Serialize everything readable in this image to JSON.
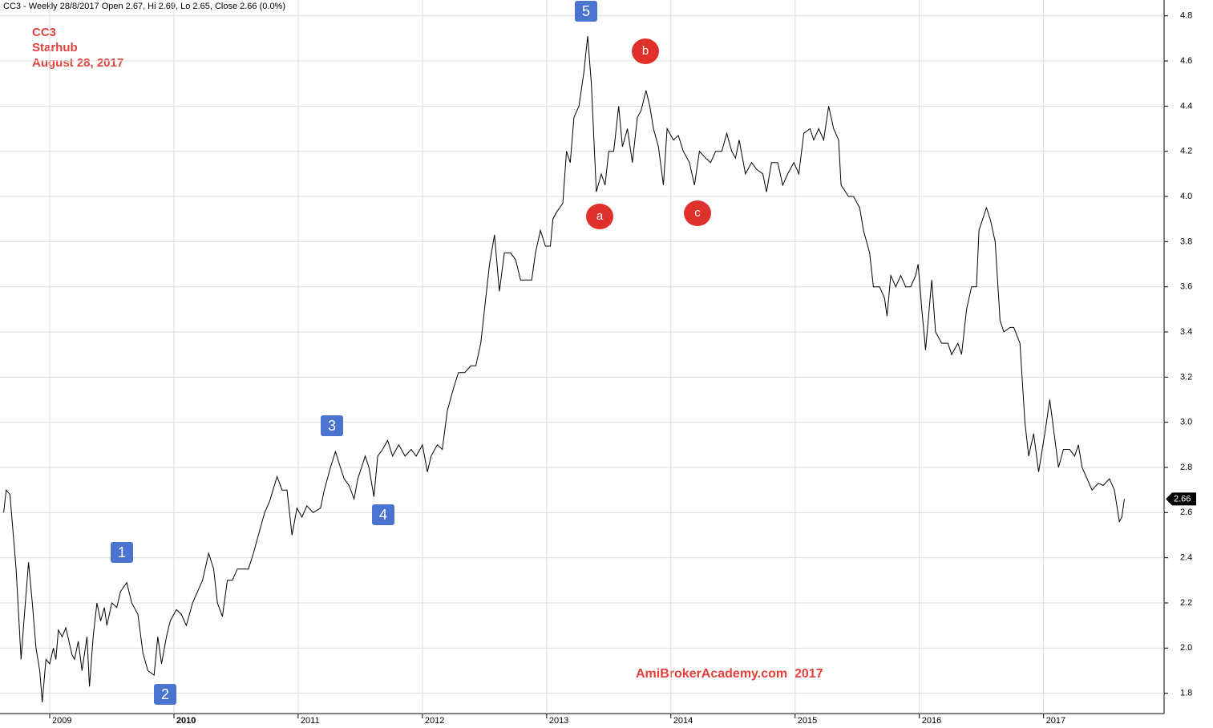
{
  "chart_data": {
    "type": "line",
    "title": "CC3 - Weekly 28/8/2017 Open 2.67, Hi 2.69, Lo 2.65, Close 2.66 (0.0%)",
    "annotations": [
      "CC3",
      "Starhub",
      "August 28, 2017"
    ],
    "watermark": "AmiBrokerAcademy.com  2017",
    "wave_labels": [
      "1",
      "2",
      "3",
      "4",
      "5"
    ],
    "correction_labels": [
      "a",
      "b",
      "c"
    ],
    "color": "#000000",
    "grid": true,
    "xlim": [
      2008.6,
      2017.97
    ],
    "ylim": [
      1.71,
      4.87
    ],
    "xticks": [
      2009,
      2010,
      2011,
      2012,
      2013,
      2014,
      2015,
      2016,
      2017
    ],
    "yticks": [
      4.8,
      4.6,
      4.4,
      4.2,
      {
        "value": 4,
        "label": "4.0"
      },
      3.8,
      3.6,
      3.4,
      3.2,
      {
        "value": 3,
        "label": "3.0"
      },
      2.8,
      2.6,
      2.4,
      2.2,
      {
        "value": 2,
        "label": "2.0"
      },
      1.8
    ],
    "x": [
      2008.63,
      2008.65,
      2008.68,
      2008.73,
      2008.77,
      2008.79,
      2008.83,
      2008.86,
      2008.89,
      2008.92,
      2008.94,
      2008.97,
      2009.0,
      2009.03,
      2009.05,
      2009.07,
      2009.1,
      2009.13,
      2009.18,
      2009.2,
      2009.23,
      2009.26,
      2009.3,
      2009.32,
      2009.35,
      2009.38,
      2009.41,
      2009.44,
      2009.46,
      2009.5,
      2009.54,
      2009.57,
      2009.62,
      2009.66,
      2009.71,
      2009.75,
      2009.79,
      2009.84,
      2009.87,
      2009.9,
      2009.94,
      2009.97,
      2010.02,
      2010.06,
      2010.1,
      2010.15,
      2010.19,
      2010.23,
      2010.28,
      2010.32,
      2010.35,
      2010.39,
      2010.43,
      2010.47,
      2010.51,
      2010.55,
      2010.6,
      2010.64,
      2010.68,
      2010.73,
      2010.77,
      2010.83,
      2010.87,
      2010.91,
      2010.95,
      2010.99,
      2011.03,
      2011.07,
      2011.12,
      2011.18,
      2011.21,
      2011.26,
      2011.3,
      2011.34,
      2011.37,
      2011.41,
      2011.45,
      2011.48,
      2011.54,
      2011.57,
      2011.61,
      2011.64,
      2011.68,
      2011.72,
      2011.76,
      2011.81,
      2011.86,
      2011.91,
      2011.95,
      2012.0,
      2012.04,
      2012.07,
      2012.12,
      2012.16,
      2012.2,
      2012.25,
      2012.29,
      2012.34,
      2012.39,
      2012.43,
      2012.47,
      2012.51,
      2012.54,
      2012.58,
      2012.62,
      2012.66,
      2012.71,
      2012.75,
      2012.79,
      2012.84,
      2012.88,
      2012.91,
      2012.95,
      2012.99,
      2013.03,
      2013.05,
      2013.08,
      2013.13,
      2013.16,
      2013.19,
      2013.22,
      2013.26,
      2013.3,
      2013.33,
      2013.36,
      2013.4,
      2013.44,
      2013.47,
      2013.5,
      2013.54,
      2013.58,
      2013.61,
      2013.65,
      2013.69,
      2013.73,
      2013.76,
      2013.8,
      2013.83,
      2013.86,
      2013.9,
      2013.94,
      2013.97,
      2014.02,
      2014.06,
      2014.1,
      2014.15,
      2014.19,
      2014.23,
      2014.28,
      2014.32,
      2014.36,
      2014.41,
      2014.45,
      2014.49,
      2014.52,
      2014.55,
      2014.6,
      2014.65,
      2014.69,
      2014.74,
      2014.77,
      2014.81,
      2014.86,
      2014.9,
      2014.94,
      2014.99,
      2015.03,
      2015.07,
      2015.12,
      2015.15,
      2015.19,
      2015.23,
      2015.27,
      2015.31,
      2015.35,
      2015.37,
      2015.43,
      2015.47,
      2015.52,
      2015.55,
      2015.6,
      2015.63,
      2015.68,
      2015.72,
      2015.74,
      2015.77,
      2015.81,
      2015.85,
      2015.89,
      2015.93,
      2015.97,
      2015.99,
      2016.02,
      2016.05,
      2016.1,
      2016.13,
      2016.18,
      2016.23,
      2016.26,
      2016.31,
      2016.34,
      2016.38,
      2016.42,
      2016.46,
      2016.48,
      2016.54,
      2016.57,
      2016.61,
      2016.65,
      2016.68,
      2016.73,
      2016.76,
      2016.81,
      2016.85,
      2016.88,
      2016.92,
      2016.96,
      2017.01,
      2017.05,
      2017.08,
      2017.12,
      2017.16,
      2017.21,
      2017.25,
      2017.28,
      2017.31,
      2017.35,
      2017.39,
      2017.44,
      2017.48,
      2017.53,
      2017.57,
      2017.61,
      2017.63,
      2017.65
    ],
    "values": [
      2.6,
      2.7,
      2.68,
      2.35,
      1.95,
      2.1,
      2.38,
      2.2,
      2.0,
      1.9,
      1.76,
      1.95,
      1.93,
      2.0,
      1.95,
      2.08,
      2.05,
      2.09,
      1.97,
      1.95,
      2.03,
      1.9,
      2.05,
      1.83,
      2.05,
      2.2,
      2.12,
      2.18,
      2.1,
      2.2,
      2.18,
      2.25,
      2.29,
      2.2,
      2.15,
      1.98,
      1.9,
      1.88,
      2.05,
      1.93,
      2.05,
      2.12,
      2.17,
      2.15,
      2.1,
      2.2,
      2.25,
      2.3,
      2.42,
      2.35,
      2.2,
      2.14,
      2.3,
      2.3,
      2.35,
      2.35,
      2.35,
      2.42,
      2.5,
      2.6,
      2.65,
      2.76,
      2.7,
      2.7,
      2.5,
      2.62,
      2.58,
      2.63,
      2.6,
      2.62,
      2.7,
      2.8,
      2.87,
      2.8,
      2.75,
      2.72,
      2.66,
      2.75,
      2.85,
      2.8,
      2.67,
      2.85,
      2.88,
      2.92,
      2.85,
      2.9,
      2.85,
      2.88,
      2.85,
      2.9,
      2.78,
      2.85,
      2.9,
      2.88,
      3.05,
      3.15,
      3.22,
      3.22,
      3.25,
      3.25,
      3.35,
      3.55,
      3.7,
      3.83,
      3.58,
      3.75,
      3.75,
      3.72,
      3.63,
      3.63,
      3.63,
      3.75,
      3.85,
      3.78,
      3.78,
      3.9,
      3.93,
      3.97,
      4.2,
      4.15,
      4.35,
      4.4,
      4.55,
      4.71,
      4.5,
      4.02,
      4.1,
      4.05,
      4.2,
      4.2,
      4.4,
      4.22,
      4.3,
      4.15,
      4.35,
      4.38,
      4.47,
      4.4,
      4.3,
      4.22,
      4.05,
      4.3,
      4.25,
      4.27,
      4.2,
      4.15,
      4.05,
      4.2,
      4.17,
      4.15,
      4.2,
      4.2,
      4.28,
      4.2,
      4.17,
      4.25,
      4.1,
      4.15,
      4.12,
      4.1,
      4.02,
      4.15,
      4.15,
      4.05,
      4.1,
      4.15,
      4.1,
      4.28,
      4.3,
      4.25,
      4.3,
      4.25,
      4.4,
      4.3,
      4.25,
      4.05,
      4.0,
      4.0,
      3.95,
      3.85,
      3.75,
      3.6,
      3.6,
      3.55,
      3.47,
      3.65,
      3.6,
      3.65,
      3.6,
      3.6,
      3.65,
      3.7,
      3.5,
      3.32,
      3.63,
      3.4,
      3.35,
      3.35,
      3.3,
      3.35,
      3.3,
      3.5,
      3.6,
      3.6,
      3.85,
      3.95,
      3.9,
      3.8,
      3.45,
      3.4,
      3.42,
      3.42,
      3.35,
      3.0,
      2.85,
      2.95,
      2.78,
      2.95,
      3.1,
      2.97,
      2.8,
      2.88,
      2.88,
      2.85,
      2.9,
      2.8,
      2.75,
      2.7,
      2.73,
      2.72,
      2.75,
      2.7,
      2.56,
      2.58,
      2.66
    ]
  }
}
